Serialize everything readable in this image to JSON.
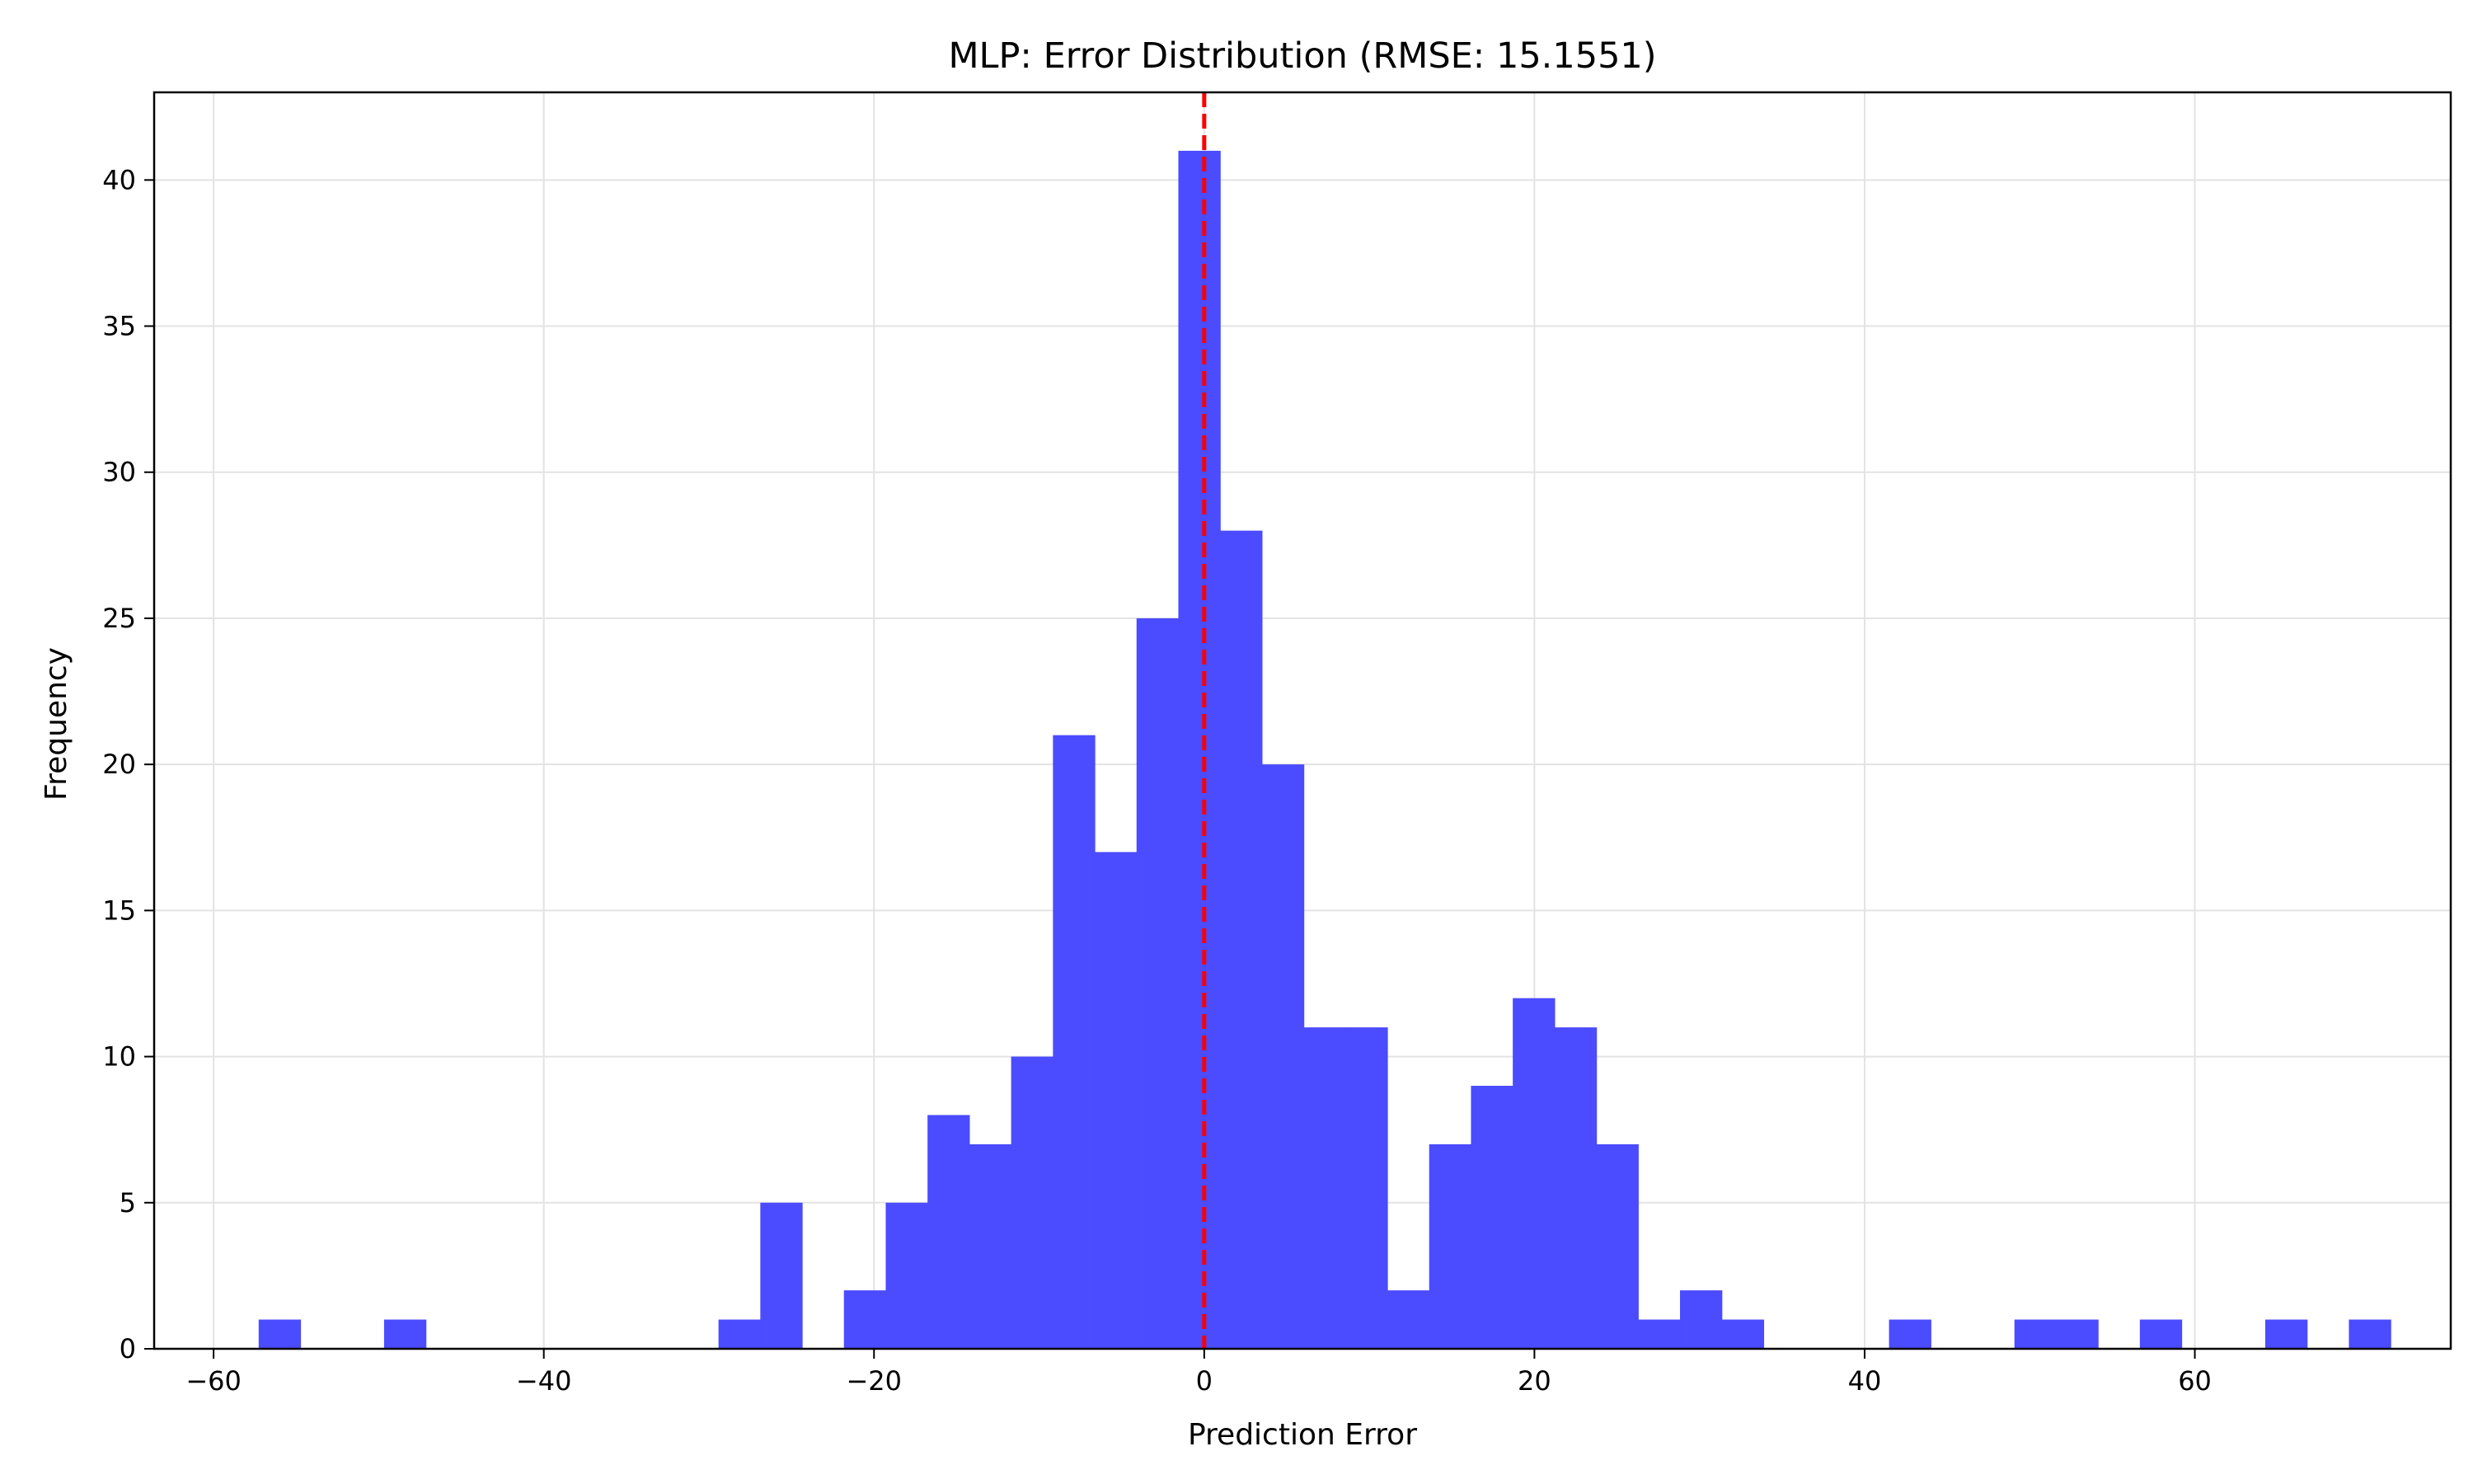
{
  "chart_data": {
    "type": "bar",
    "title": "MLP: Error Distribution (RMSE: 15.1551)",
    "xlabel": "Prediction Error",
    "ylabel": "Frequency",
    "xlim": [
      -63.6,
      75.5
    ],
    "ylim": [
      0,
      43
    ],
    "xticks": [
      -60,
      -40,
      -20,
      0,
      20,
      40,
      60
    ],
    "yticks": [
      0,
      5,
      10,
      15,
      20,
      25,
      30,
      35,
      40
    ],
    "grid": true,
    "bar_color": "#4b4bff",
    "reference_line": {
      "x": 0,
      "color": "#ff0000",
      "style": "dashed"
    },
    "bin_start": -57.27,
    "bin_width": 2.532,
    "counts": [
      1,
      0,
      0,
      1,
      0,
      0,
      0,
      0,
      0,
      0,
      0,
      1,
      5,
      0,
      2,
      5,
      8,
      7,
      10,
      21,
      17,
      25,
      41,
      28,
      20,
      11,
      11,
      2,
      7,
      9,
      12,
      11,
      7,
      1,
      2,
      1,
      0,
      0,
      0,
      1,
      0,
      0,
      1,
      1,
      0,
      1,
      0,
      0,
      1,
      0,
      1
    ]
  }
}
